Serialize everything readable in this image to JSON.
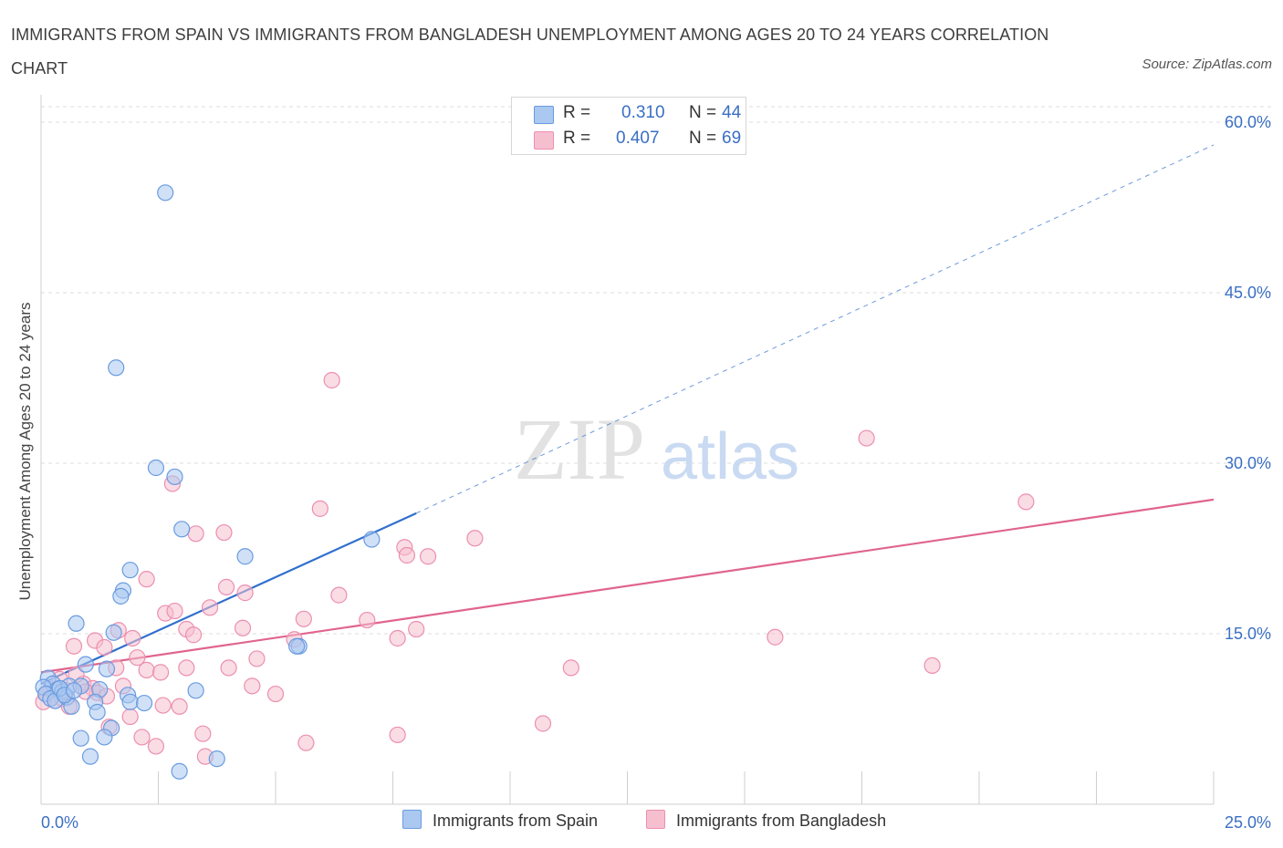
{
  "title": "IMMIGRANTS FROM SPAIN VS IMMIGRANTS FROM BANGLADESH UNEMPLOYMENT AMONG AGES 20 TO 24 YEARS CORRELATION CHART",
  "source": "Source: ZipAtlas.com",
  "watermark": {
    "zip": "ZIP",
    "atlas": "atlas"
  },
  "legend": {
    "rows": [
      {
        "r_label": "R =",
        "r_value": "0.310",
        "n_label": "N =",
        "n_value": "44"
      },
      {
        "r_label": "R =",
        "r_value": "0.407",
        "n_label": "N =",
        "n_value": "69"
      }
    ]
  },
  "colors": {
    "spain_fill": "#aac8f0",
    "spain_stroke": "#6a9be0",
    "spain_line": "#2f6fcd",
    "bangladesh_fill": "#f6bfd0",
    "bangladesh_stroke": "#ec8fae",
    "bangladesh_line": "#e0648e",
    "tick_text": "#3b6fc4",
    "grid": "#dddddd"
  },
  "chart_data": {
    "type": "scatter",
    "title": "IMMIGRANTS FROM SPAIN VS IMMIGRANTS FROM BANGLADESH UNEMPLOYMENT AMONG AGES 20 TO 24 YEARS CORRELATION CHART",
    "xlabel": "",
    "ylabel": "Unemployment Among Ages 20 to 24 years",
    "xlim": [
      0,
      25
    ],
    "ylim": [
      0,
      60
    ],
    "x_tick_labels": [
      "0.0%",
      "25.0%"
    ],
    "y_ticks": [
      15,
      30,
      45,
      60
    ],
    "y_tick_labels": [
      "15.0%",
      "30.0%",
      "45.0%",
      "60.0%"
    ],
    "grid": true,
    "series": [
      {
        "name": "Immigrants from Spain",
        "R": 0.31,
        "N": 44,
        "trend": {
          "x0": 0.0,
          "y0": 10.6,
          "x1": 8.0,
          "y1": 25.6,
          "dashed_to_x": 25.0,
          "dashed_to_y": 58.0
        },
        "points": [
          [
            2.65,
            53.8
          ],
          [
            1.6,
            38.4
          ],
          [
            2.45,
            29.6
          ],
          [
            2.85,
            28.8
          ],
          [
            3.0,
            24.2
          ],
          [
            4.35,
            21.8
          ],
          [
            7.05,
            23.3
          ],
          [
            1.9,
            20.6
          ],
          [
            1.75,
            18.8
          ],
          [
            1.7,
            18.3
          ],
          [
            0.75,
            15.9
          ],
          [
            1.55,
            15.1
          ],
          [
            5.5,
            13.9
          ],
          [
            5.45,
            13.9
          ],
          [
            0.95,
            12.3
          ],
          [
            1.4,
            11.9
          ],
          [
            0.15,
            11.1
          ],
          [
            0.25,
            10.6
          ],
          [
            0.35,
            10.1
          ],
          [
            0.45,
            9.9
          ],
          [
            0.6,
            10.4
          ],
          [
            0.85,
            10.4
          ],
          [
            1.25,
            10.1
          ],
          [
            0.05,
            10.3
          ],
          [
            0.1,
            9.7
          ],
          [
            0.2,
            9.3
          ],
          [
            0.3,
            9.1
          ],
          [
            0.55,
            9.4
          ],
          [
            0.65,
            8.6
          ],
          [
            1.15,
            9.0
          ],
          [
            1.2,
            8.1
          ],
          [
            1.85,
            9.6
          ],
          [
            1.9,
            9.0
          ],
          [
            2.2,
            8.9
          ],
          [
            3.3,
            10.0
          ],
          [
            1.5,
            6.7
          ],
          [
            0.85,
            5.8
          ],
          [
            1.35,
            5.9
          ],
          [
            1.05,
            4.2
          ],
          [
            3.75,
            4.0
          ],
          [
            2.95,
            2.9
          ],
          [
            0.4,
            10.2
          ],
          [
            0.5,
            9.6
          ],
          [
            0.7,
            10.0
          ]
        ]
      },
      {
        "name": "Immigrants from Bangladesh",
        "R": 0.407,
        "N": 69,
        "trend": {
          "x0": 0.0,
          "y0": 11.6,
          "x1": 25.0,
          "y1": 26.8
        },
        "points": [
          [
            6.2,
            37.3
          ],
          [
            17.6,
            32.2
          ],
          [
            2.8,
            28.2
          ],
          [
            5.95,
            26.0
          ],
          [
            21.0,
            26.6
          ],
          [
            3.3,
            23.8
          ],
          [
            3.9,
            23.9
          ],
          [
            9.25,
            23.4
          ],
          [
            7.75,
            22.6
          ],
          [
            7.8,
            21.9
          ],
          [
            8.25,
            21.8
          ],
          [
            2.25,
            19.8
          ],
          [
            3.95,
            19.1
          ],
          [
            4.35,
            18.6
          ],
          [
            6.35,
            18.4
          ],
          [
            2.65,
            16.8
          ],
          [
            2.85,
            17.0
          ],
          [
            3.6,
            17.3
          ],
          [
            5.6,
            16.3
          ],
          [
            6.95,
            16.2
          ],
          [
            4.3,
            15.5
          ],
          [
            8.0,
            15.4
          ],
          [
            3.1,
            15.4
          ],
          [
            3.25,
            14.9
          ],
          [
            1.65,
            15.3
          ],
          [
            1.15,
            14.4
          ],
          [
            1.95,
            14.6
          ],
          [
            0.7,
            13.9
          ],
          [
            5.4,
            14.5
          ],
          [
            7.6,
            14.6
          ],
          [
            15.65,
            14.7
          ],
          [
            1.35,
            13.8
          ],
          [
            2.05,
            12.9
          ],
          [
            4.6,
            12.8
          ],
          [
            2.25,
            11.8
          ],
          [
            3.1,
            12.0
          ],
          [
            4.0,
            12.0
          ],
          [
            11.3,
            12.0
          ],
          [
            19.0,
            12.2
          ],
          [
            1.6,
            12.0
          ],
          [
            2.55,
            11.6
          ],
          [
            0.4,
            11.0
          ],
          [
            0.9,
            10.6
          ],
          [
            1.1,
            10.2
          ],
          [
            1.75,
            10.4
          ],
          [
            0.55,
            10.0
          ],
          [
            0.2,
            10.1
          ],
          [
            0.1,
            9.7
          ],
          [
            4.5,
            10.4
          ],
          [
            5.0,
            9.7
          ],
          [
            0.3,
            9.1
          ],
          [
            0.45,
            9.3
          ],
          [
            0.6,
            8.6
          ],
          [
            2.6,
            8.7
          ],
          [
            2.95,
            8.6
          ],
          [
            1.2,
            9.8
          ],
          [
            1.4,
            9.5
          ],
          [
            0.05,
            9.0
          ],
          [
            1.9,
            7.7
          ],
          [
            1.45,
            6.8
          ],
          [
            3.45,
            6.2
          ],
          [
            2.15,
            5.9
          ],
          [
            7.6,
            6.1
          ],
          [
            10.7,
            7.1
          ],
          [
            5.65,
            5.4
          ],
          [
            2.45,
            5.1
          ],
          [
            3.5,
            4.2
          ],
          [
            0.75,
            11.4
          ],
          [
            0.95,
            9.9
          ]
        ]
      }
    ]
  },
  "bottom_legend": [
    {
      "label": "Immigrants from Spain"
    },
    {
      "label": "Immigrants from Bangladesh"
    }
  ]
}
